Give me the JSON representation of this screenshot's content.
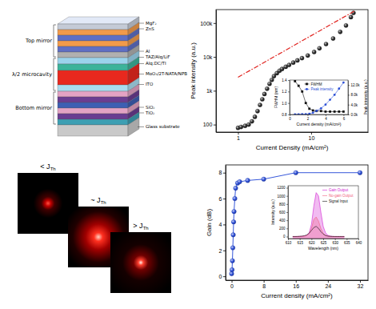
{
  "diagram": {
    "groups": [
      {
        "label": "Top mirror",
        "layers": [
          {
            "label": "MgF₂",
            "color": "#c4cad6"
          },
          {
            "label": "ZnS",
            "color": "#f29a4a"
          },
          {
            "label": null,
            "color": "#5f6fc4"
          },
          {
            "label": null,
            "color": "#f29a4a"
          },
          {
            "label": null,
            "color": "#5f6fc4"
          },
          {
            "label": "Al",
            "color": "#b0b0b0"
          }
        ]
      },
      {
        "label": "λ/2 microcavity",
        "layers": [
          {
            "label": "TAZ/Alq/LiF",
            "color": "#9bd3ec"
          },
          {
            "label": "Alq:DC/TI",
            "color": "#3cb39a"
          },
          {
            "label": "MoO₃/2T-NATA/NPB",
            "color": "#e8281e"
          },
          {
            "label": "ITO",
            "color": "#a9dcef"
          }
        ]
      },
      {
        "label": "Bottom mirror",
        "layers": [
          {
            "label": null,
            "color": "#e3a3c4"
          },
          {
            "label": null,
            "color": "#6a3d91"
          },
          {
            "label": null,
            "color": "#3d5fb3"
          },
          {
            "label": "SiO₂",
            "color": "#e3a3c4"
          },
          {
            "label": "TiO₂",
            "color": "#6a3d91"
          },
          {
            "label": null,
            "color": "#3d9fb3"
          }
        ]
      }
    ],
    "substrate": {
      "label": "Glass substrate",
      "color": "#c9c9c9"
    }
  },
  "beam_images": {
    "labels": [
      {
        "text": "< J",
        "subscript": "Th"
      },
      {
        "text": "~ J",
        "subscript": "Th"
      },
      {
        "text": "> J",
        "subscript": "Th"
      }
    ]
  },
  "chart_data": [
    {
      "type": "scatter",
      "log": true,
      "x_label": "Current Density (mA/cm²)",
      "y_label": "Peak intensity (a.u.)",
      "xlim": [
        0.5,
        60
      ],
      "ylim": [
        60,
        250000
      ],
      "xticks": [
        1,
        10
      ],
      "yticks": [
        100,
        {
          "value": 1000,
          "label": "1k"
        },
        {
          "value": 10000,
          "label": "10k"
        },
        {
          "value": 100000,
          "label": "100k"
        }
      ],
      "series": [
        {
          "type": "scatter",
          "marker": "sphere",
          "color": "#2a2a2a",
          "x": [
            1.0,
            1.1,
            1.25,
            1.4,
            1.55,
            1.7,
            1.85,
            2.0,
            2.15,
            2.3,
            2.5,
            2.7,
            2.9,
            3.1,
            3.4,
            3.7,
            4.0,
            4.5,
            5.0,
            5.7,
            6.5,
            7.5,
            9.0,
            11,
            13,
            16,
            20,
            25,
            30,
            35,
            38
          ],
          "values": [
            80,
            85,
            92,
            100,
            125,
            170,
            250,
            380,
            560,
            800,
            1150,
            1600,
            2100,
            2700,
            3300,
            3900,
            4400,
            5100,
            5800,
            6800,
            7900,
            9200,
            11000,
            14000,
            18000,
            24000,
            35000,
            55000,
            85000,
            150000,
            200000
          ]
        },
        {
          "type": "line",
          "line_style": "dashdot",
          "color": "#e0201c",
          "x": [
            1,
            40
          ],
          "values": [
            2500,
            233000
          ]
        }
      ]
    },
    {
      "type": "line",
      "legend": "upper center",
      "x_label": "Current density (mA/cm²)",
      "y_label": "FWHM (nm)",
      "y2_label": "Peak intensity (a.u.)",
      "xlim": [
        0,
        6.5
      ],
      "ylim": [
        0.8,
        1.4
      ],
      "y2lim": [
        0,
        14000
      ],
      "xticks": [
        0,
        2,
        4,
        6
      ],
      "yticks": [
        0.8,
        {
          "value": 1,
          "label": "1.0"
        },
        1.2,
        1.4
      ],
      "y2ticks": [
        {
          "value": 0,
          "label": "0.0k"
        },
        {
          "value": 4000,
          "label": "4.0k"
        },
        {
          "value": 8000,
          "label": "8.0k"
        },
        {
          "value": 12000,
          "label": "12.0k"
        }
      ],
      "series": [
        {
          "name": "FWHM",
          "type": "line",
          "marker": "square",
          "color": "#111111",
          "x": [
            0.6,
            1.0,
            1.4,
            1.8,
            2.2,
            2.6,
            3.0,
            3.5,
            4.0,
            4.5,
            5.0,
            5.5,
            6.0
          ],
          "values": [
            1.38,
            1.3,
            1.2,
            1.0,
            0.9,
            0.87,
            0.86,
            0.86,
            0.85,
            0.85,
            0.85,
            0.85,
            0.85
          ]
        },
        {
          "name": "Peak intensity",
          "type": "line",
          "marker": "circle",
          "color": "#2b4fd6",
          "axis": "y2",
          "x": [
            0.6,
            1.0,
            1.4,
            1.8,
            2.2,
            2.6,
            3.0,
            3.5,
            4.0,
            4.5,
            5.0,
            5.5,
            6.0
          ],
          "values": [
            50,
            60,
            80,
            120,
            300,
            700,
            1500,
            2500,
            4000,
            6000,
            8000,
            10500,
            13000
          ]
        }
      ]
    },
    {
      "type": "line",
      "x_label": "Current density (mA/cm²)",
      "y_label": "Gain (dB)",
      "xlim": [
        -1.5,
        34
      ],
      "ylim": [
        -0.3,
        8.6
      ],
      "xticks": [
        0,
        8,
        16,
        24,
        32
      ],
      "yticks": [
        0,
        2,
        4,
        6,
        8
      ],
      "series": [
        {
          "type": "line",
          "marker": "sphere",
          "color": "#2d4fd8",
          "x": [
            0,
            0.1,
            0.2,
            0.3,
            0.4,
            0.5,
            0.6,
            0.8,
            1.0,
            1.5,
            2,
            4,
            8,
            16,
            32
          ],
          "values": [
            0.2,
            0.5,
            1.2,
            2.2,
            3.2,
            4.2,
            5.0,
            6.0,
            6.8,
            7.2,
            7.3,
            7.4,
            7.5,
            8.0,
            8.0
          ]
        }
      ]
    },
    {
      "type": "area",
      "legend": "upper right",
      "x_label": "Wavelength (nm)",
      "y_label": "Intensity (a.u.)",
      "xlim": [
        610,
        640
      ],
      "ylim": [
        -50,
        1250
      ],
      "xticks": [
        610,
        615,
        620,
        625,
        630,
        635,
        640
      ],
      "yticks": [
        0,
        200,
        400,
        600,
        800,
        1000,
        1200
      ],
      "x": [
        612,
        613,
        614,
        615,
        616,
        617,
        618,
        619,
        620,
        621,
        622,
        623,
        624,
        625,
        626,
        627,
        628,
        629,
        630,
        631,
        632,
        633,
        634
      ],
      "series": [
        {
          "name": "Gain Output",
          "type": "area",
          "color": "#d11ed1",
          "values": [
            0,
            0,
            0,
            2,
            5,
            12,
            30,
            90,
            300,
            750,
            1080,
            1000,
            600,
            250,
            90,
            30,
            10,
            3,
            0,
            0,
            0,
            0,
            0
          ]
        },
        {
          "name": "No-gain Output",
          "type": "area",
          "color": "#f06080",
          "values": [
            0,
            0,
            0,
            2,
            5,
            10,
            25,
            70,
            200,
            420,
            480,
            380,
            200,
            80,
            30,
            10,
            3,
            0,
            0,
            0,
            0,
            0,
            0
          ]
        },
        {
          "name": "Signal Input",
          "type": "line",
          "color": "#111111",
          "values": [
            0,
            0,
            2,
            5,
            10,
            20,
            40,
            80,
            150,
            220,
            250,
            200,
            120,
            60,
            25,
            10,
            4,
            1,
            0,
            0,
            0,
            0,
            0
          ]
        }
      ]
    }
  ]
}
